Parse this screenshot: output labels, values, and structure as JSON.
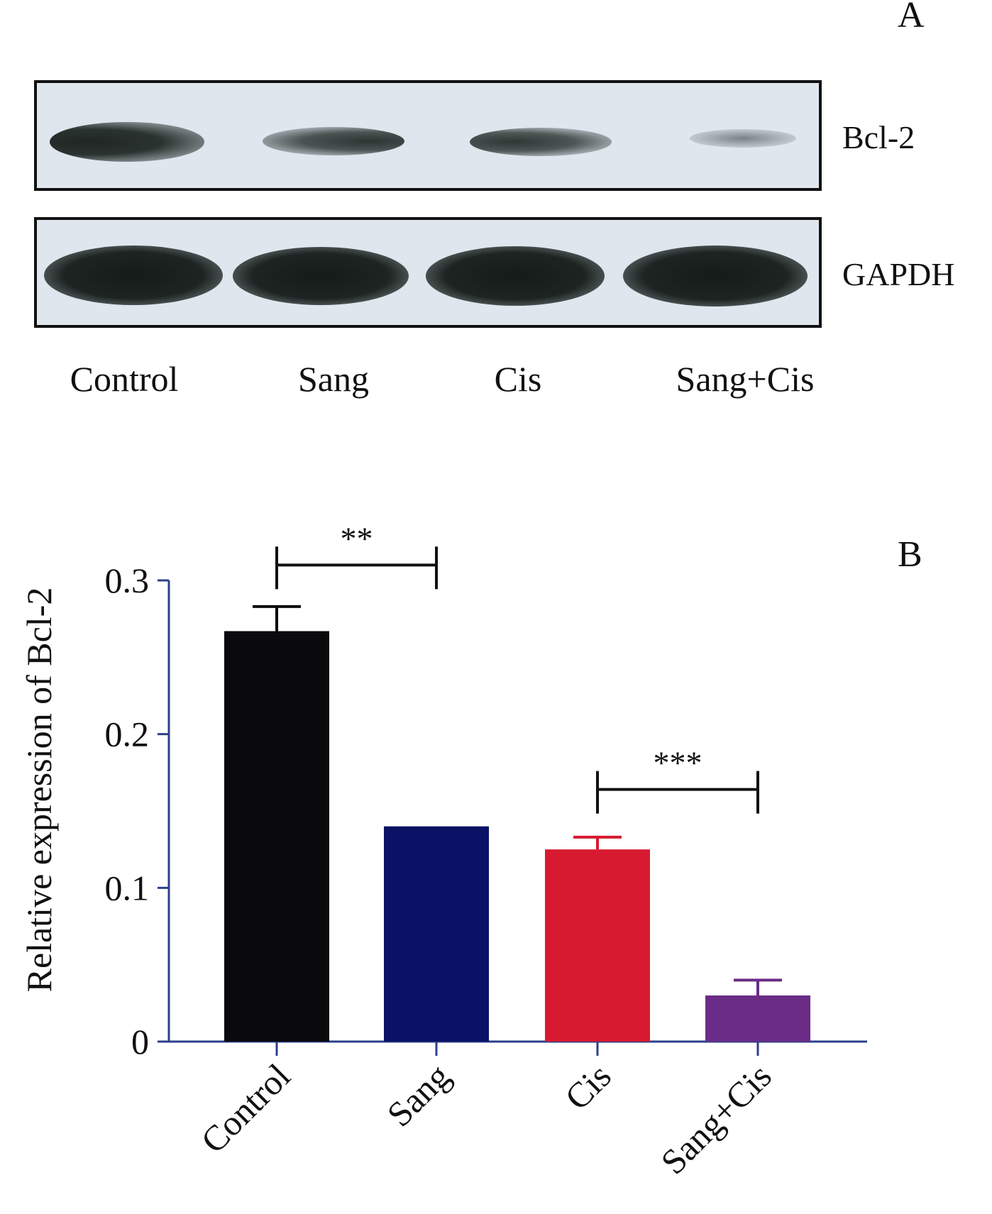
{
  "panel_a": {
    "letter": "A",
    "blots": [
      {
        "label": "Bcl-2",
        "intensities": [
          1.0,
          0.55,
          0.55,
          0.18
        ]
      },
      {
        "label": "GAPDH",
        "intensities": [
          1.0,
          1.0,
          1.0,
          1.0
        ]
      }
    ],
    "lanes": [
      "Control",
      "Sang",
      "Cis",
      "Sang+Cis"
    ]
  },
  "panel_b": {
    "letter": "B"
  },
  "chart_data": {
    "type": "bar",
    "title": "",
    "xlabel": "",
    "ylabel": "Relative expression of Bcl-2",
    "categories": [
      "Control",
      "Sang",
      "Cis",
      "Sang+Cis"
    ],
    "values": [
      0.267,
      0.14,
      0.125,
      0.03
    ],
    "errors": [
      0.016,
      0.0,
      0.008,
      0.01
    ],
    "colors": [
      "#0a0a0c",
      "#0b1266",
      "#d71a2f",
      "#6a2c86"
    ],
    "ylim": [
      0,
      0.3
    ],
    "yticks": [
      0,
      0.1,
      0.2,
      0.3
    ],
    "ytick_labels": [
      "0",
      "0.1",
      "0.2",
      "0.3"
    ],
    "axis_color": "#2b3f8a",
    "grid": false,
    "significance": [
      {
        "from": 0,
        "to": 1,
        "label": "**",
        "y": 0.31
      },
      {
        "from": 2,
        "to": 3,
        "label": "***",
        "y": 0.164
      }
    ]
  }
}
